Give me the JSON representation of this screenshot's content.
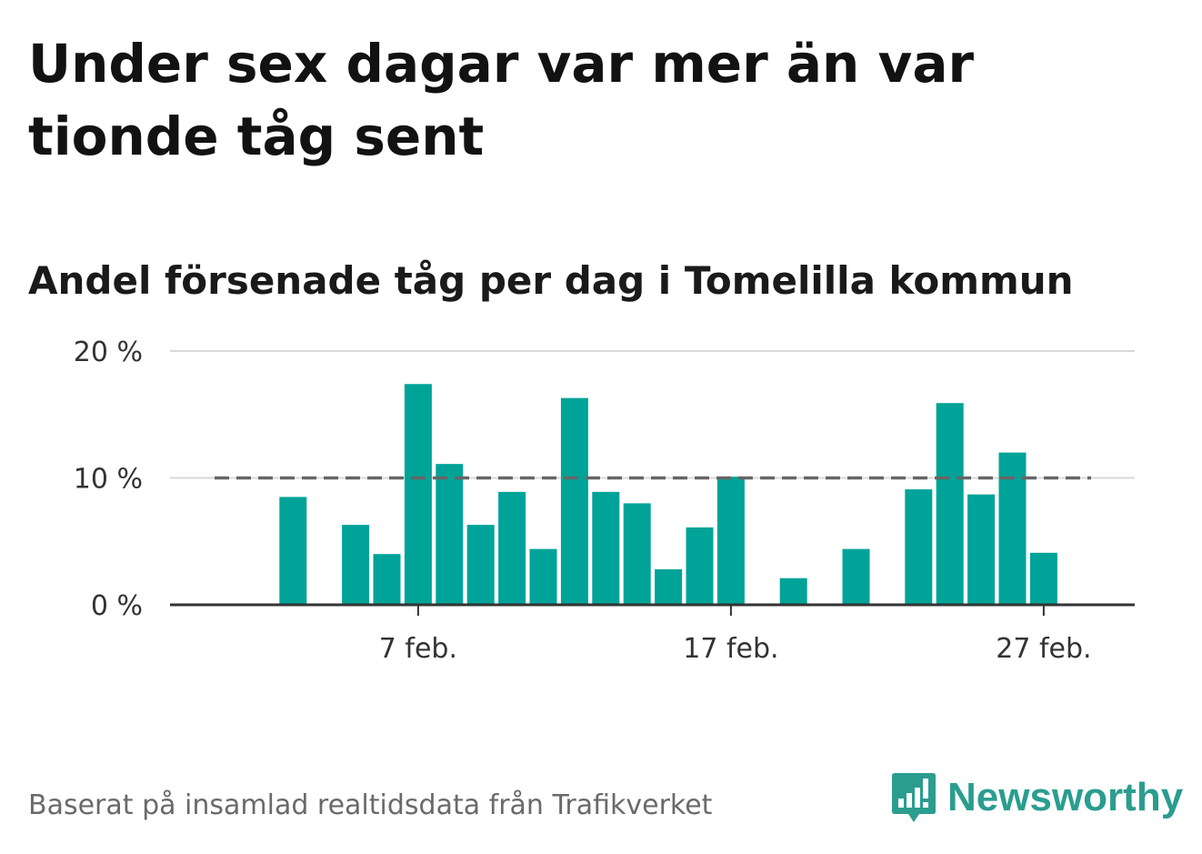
{
  "title": "Under sex dagar var mer än var tionde tåg sent",
  "subtitle": "Andel försenade tåg per dag i Tomelilla kommun",
  "footer": "Baserat på insamlad realtidsdata från Trafikverket",
  "logo": {
    "text": "Newsworthy",
    "icon": "newsworthy-logo-icon",
    "color": "#2a9d8f"
  },
  "chart_data": {
    "type": "bar",
    "unit": "%",
    "ylim": [
      0,
      20
    ],
    "y_ticks": [
      {
        "value": 0,
        "label": "0 %"
      },
      {
        "value": 10,
        "label": "10 %"
      },
      {
        "value": 20,
        "label": "20 %"
      }
    ],
    "x_ticks": [
      {
        "day": 7,
        "label": "7 feb."
      },
      {
        "day": 17,
        "label": "17 feb."
      },
      {
        "day": 27,
        "label": "27 feb."
      }
    ],
    "x_range": [
      0,
      28
    ],
    "reference_line": {
      "value": 10,
      "style": "dashed",
      "color": "#666666"
    },
    "bar_color": "#00a398",
    "grid": true,
    "x": [
      1,
      2,
      3,
      4,
      5,
      6,
      7,
      8,
      9,
      10,
      11,
      12,
      13,
      14,
      15,
      16,
      17,
      18,
      19,
      20,
      21,
      22,
      23,
      24,
      25,
      26,
      27,
      28
    ],
    "values": [
      0,
      0,
      8.5,
      0,
      6.3,
      4.0,
      17.4,
      11.1,
      6.3,
      8.9,
      4.4,
      16.3,
      8.9,
      8.0,
      2.8,
      6.1,
      10.1,
      0,
      2.1,
      0,
      4.4,
      0,
      9.1,
      15.9,
      8.7,
      12.0,
      4.1,
      0
    ]
  }
}
